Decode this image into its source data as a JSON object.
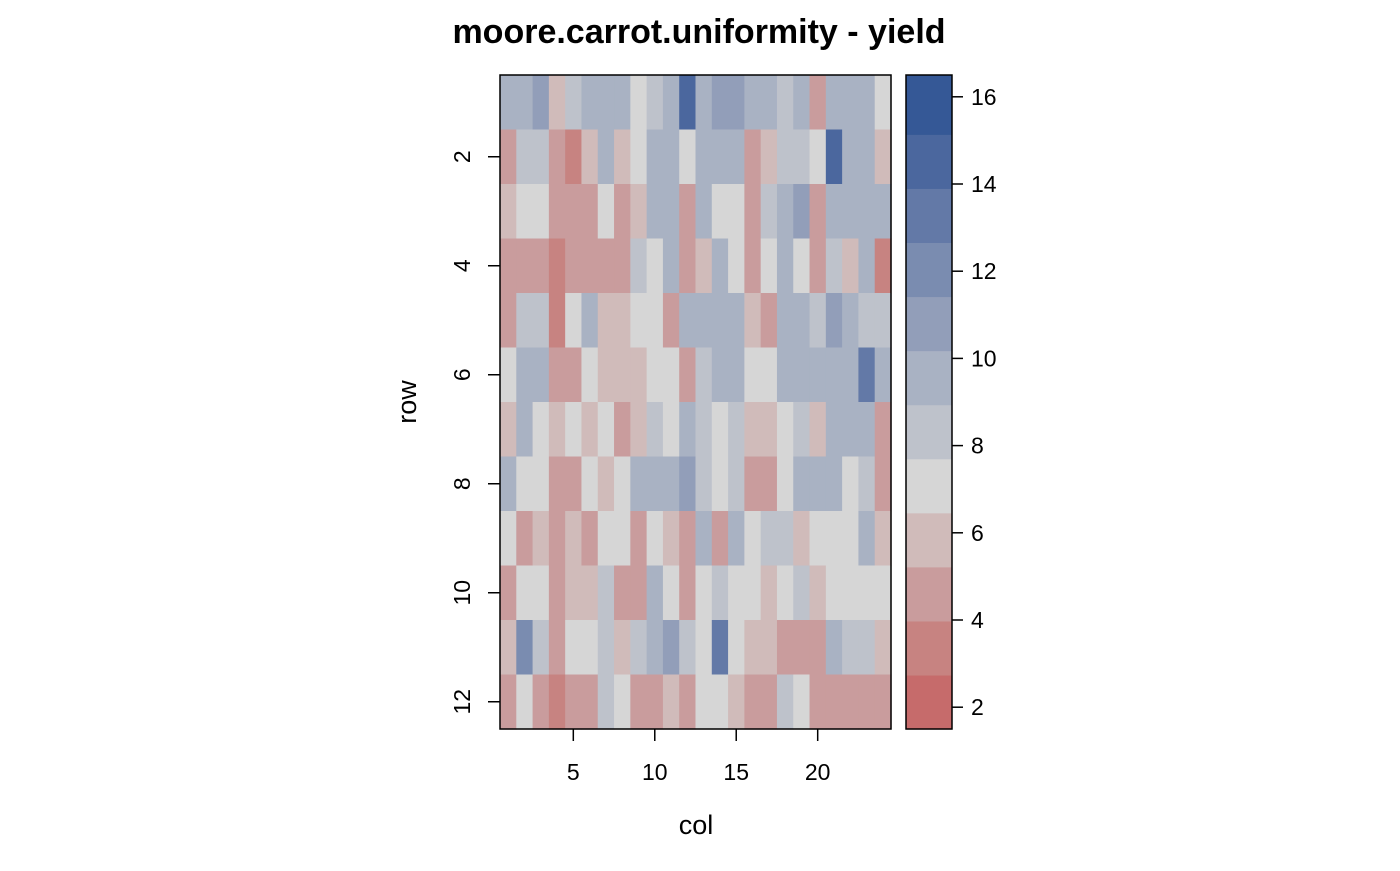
{
  "chart_data": {
    "type": "heatmap",
    "title": "moore.carrot.uniformity - yield",
    "xlabel": "col",
    "ylabel": "row",
    "xlim": [
      0.5,
      24.5
    ],
    "ylim": [
      12.5,
      0.5
    ],
    "x_ticks": [
      5,
      10,
      15,
      20
    ],
    "x_tick_labels": [
      "5",
      "10",
      "15",
      "20"
    ],
    "y_ticks": [
      2,
      4,
      6,
      8,
      10,
      12
    ],
    "y_tick_labels": [
      "2",
      "4",
      "6",
      "8",
      "10",
      "12"
    ],
    "rows": [
      1,
      2,
      3,
      4,
      5,
      6,
      7,
      8,
      9,
      10,
      11,
      12
    ],
    "cols": [
      1,
      2,
      3,
      4,
      5,
      6,
      7,
      8,
      9,
      10,
      11,
      12,
      13,
      14,
      15,
      16,
      17,
      18,
      19,
      20,
      21,
      22,
      23,
      24
    ],
    "values": [
      [
        9,
        9,
        11,
        6,
        8,
        10,
        10,
        9,
        7,
        8,
        9,
        15,
        10,
        11,
        11,
        9,
        10,
        8,
        9,
        4,
        9,
        9,
        9,
        7
      ],
      [
        5,
        8,
        8,
        5,
        3,
        6,
        9,
        6,
        7,
        10,
        10,
        7,
        10,
        9,
        10,
        5,
        6,
        8,
        8,
        7,
        15,
        9,
        9,
        6
      ],
      [
        6,
        7,
        7,
        5,
        4,
        5,
        7,
        5,
        6,
        9,
        9,
        5,
        9,
        7,
        7,
        5,
        8,
        10,
        11,
        5,
        9,
        9,
        10,
        10
      ],
      [
        5,
        5,
        5,
        3,
        5,
        5,
        5,
        4,
        8,
        7,
        9,
        5,
        6,
        9,
        7,
        5,
        7,
        9,
        7,
        4,
        8,
        6,
        9,
        3
      ],
      [
        5,
        8,
        8,
        3,
        7,
        9,
        6,
        6,
        7,
        7,
        5,
        9,
        10,
        10,
        9,
        6,
        5,
        10,
        10,
        8,
        11,
        9,
        8,
        8
      ],
      [
        7,
        9,
        9,
        5,
        5,
        7,
        6,
        6,
        6,
        7,
        7,
        4,
        8,
        9,
        10,
        7,
        7,
        9,
        9,
        9,
        9,
        9,
        13,
        9
      ],
      [
        6,
        9,
        7,
        6,
        7,
        6,
        7,
        5,
        6,
        8,
        7,
        10,
        8,
        7,
        8,
        6,
        6,
        7,
        8,
        6,
        10,
        9,
        9,
        5
      ],
      [
        9,
        7,
        7,
        4,
        4,
        7,
        6,
        7,
        9,
        10,
        10,
        11,
        8,
        7,
        8,
        4,
        4,
        7,
        9,
        9,
        9,
        7,
        8,
        5
      ],
      [
        7,
        5,
        6,
        5,
        6,
        5,
        7,
        7,
        5,
        7,
        6,
        5,
        9,
        5,
        9,
        7,
        8,
        8,
        6,
        7,
        7,
        7,
        9,
        6
      ],
      [
        5,
        7,
        7,
        5,
        6,
        6,
        8,
        5,
        5,
        10,
        7,
        5,
        7,
        8,
        7,
        7,
        6,
        7,
        8,
        6,
        7,
        7,
        7,
        7
      ],
      [
        6,
        12,
        8,
        5,
        7,
        7,
        8,
        6,
        8,
        9,
        11,
        8,
        7,
        13,
        7,
        6,
        6,
        5,
        5,
        5,
        9,
        8,
        8,
        6
      ],
      [
        5,
        7,
        5,
        3,
        4,
        4,
        8,
        7,
        5,
        5,
        6,
        4,
        7,
        7,
        6,
        4,
        5,
        8,
        7,
        5,
        5,
        5,
        5,
        5
      ]
    ],
    "colorbar": {
      "range": [
        1.5,
        16.5
      ],
      "ticks": [
        2,
        4,
        6,
        8,
        10,
        12,
        14,
        16
      ],
      "tick_labels": [
        "2",
        "4",
        "6",
        "8",
        "10",
        "12",
        "14",
        "16"
      ],
      "bins": [
        {
          "from": 1.5,
          "to": 2.74,
          "color": "#C66B6B"
        },
        {
          "from": 2.74,
          "to": 3.98,
          "color": "#C78381"
        },
        {
          "from": 3.98,
          "to": 5.22,
          "color": "#C99C9D"
        },
        {
          "from": 5.22,
          "to": 6.46,
          "color": "#D0BBBA"
        },
        {
          "from": 6.46,
          "to": 7.7,
          "color": "#D6D6D6"
        },
        {
          "from": 7.7,
          "to": 8.94,
          "color": "#BEC2CB"
        },
        {
          "from": 8.94,
          "to": 10.18,
          "color": "#A9B2C3"
        },
        {
          "from": 10.18,
          "to": 11.42,
          "color": "#929EB9"
        },
        {
          "from": 11.42,
          "to": 12.66,
          "color": "#7A8CB0"
        },
        {
          "from": 12.66,
          "to": 13.9,
          "color": "#6379A7"
        },
        {
          "from": 13.9,
          "to": 15.14,
          "color": "#4B679E"
        },
        {
          "from": 15.14,
          "to": 16.5,
          "color": "#355896"
        }
      ]
    }
  }
}
